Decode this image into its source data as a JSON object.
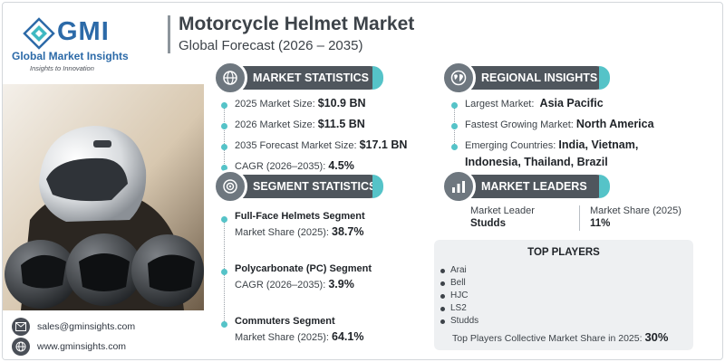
{
  "brand": {
    "name": "GMI",
    "full_name": "Global Market Insights",
    "tagline": "Insights to Innovation",
    "color": "#2c6aa8"
  },
  "header": {
    "title": "Motorcycle Helmet Market",
    "subtitle": "Global Forecast (2026 – 2035)"
  },
  "market_statistics": {
    "heading": "MARKET STATISTICS",
    "icon": "globe-money-icon",
    "items": [
      {
        "label": "2025 Market Size:",
        "value": "$10.9 BN"
      },
      {
        "label": "2026 Market Size:",
        "value": "$11.5 BN"
      },
      {
        "label": "2035 Forecast Market Size:",
        "value": "$17.1 BN"
      },
      {
        "label": "CAGR (2026–2035):",
        "value": "4.5%"
      }
    ]
  },
  "segment_statistics": {
    "heading": "SEGMENT STATISTICS",
    "icon": "target-gear-icon",
    "items": [
      {
        "title": "Full-Face Helmets Segment",
        "label": "Market Share (2025):",
        "value": "38.7%"
      },
      {
        "title": "Polycarbonate (PC) Segment",
        "label": "CAGR (2026–2035):",
        "value": "3.9%"
      },
      {
        "title": "Commuters Segment",
        "label": "Market Share (2025):",
        "value": "64.1%"
      }
    ]
  },
  "regional_insights": {
    "heading": "REGIONAL INSIGHTS",
    "icon": "world-map-icon",
    "largest_label": "Largest Market:",
    "largest_value": "Asia Pacific",
    "fastest_label": "Fastest Growing Market:",
    "fastest_value": "North America",
    "emerging_label": "Emerging Countries:",
    "emerging_value_line1": "India, Vietnam,",
    "emerging_value_line2": "Indonesia, Thailand, Brazil"
  },
  "market_leaders": {
    "heading": "MARKET LEADERS",
    "icon": "leader-chart-icon",
    "leader_label": "Market Leader",
    "leader_value": "Studds",
    "share_label": "Market Share (2025)",
    "share_value": "11%"
  },
  "top_players": {
    "heading": "TOP PLAYERS",
    "players": [
      "Arai",
      "Bell",
      "HJC",
      "LS2",
      "Studds"
    ],
    "collective_label": "Top Players Collective Market Share in 2025:",
    "collective_value": "30%"
  },
  "contact": {
    "email": "sales@gminsights.com",
    "website": "www.gminsights.com",
    "email_icon": "envelope-icon",
    "web_icon": "globe-icon"
  },
  "colors": {
    "pill": "#4f565d",
    "accent": "#55c3c8",
    "text": "#3d4349"
  }
}
